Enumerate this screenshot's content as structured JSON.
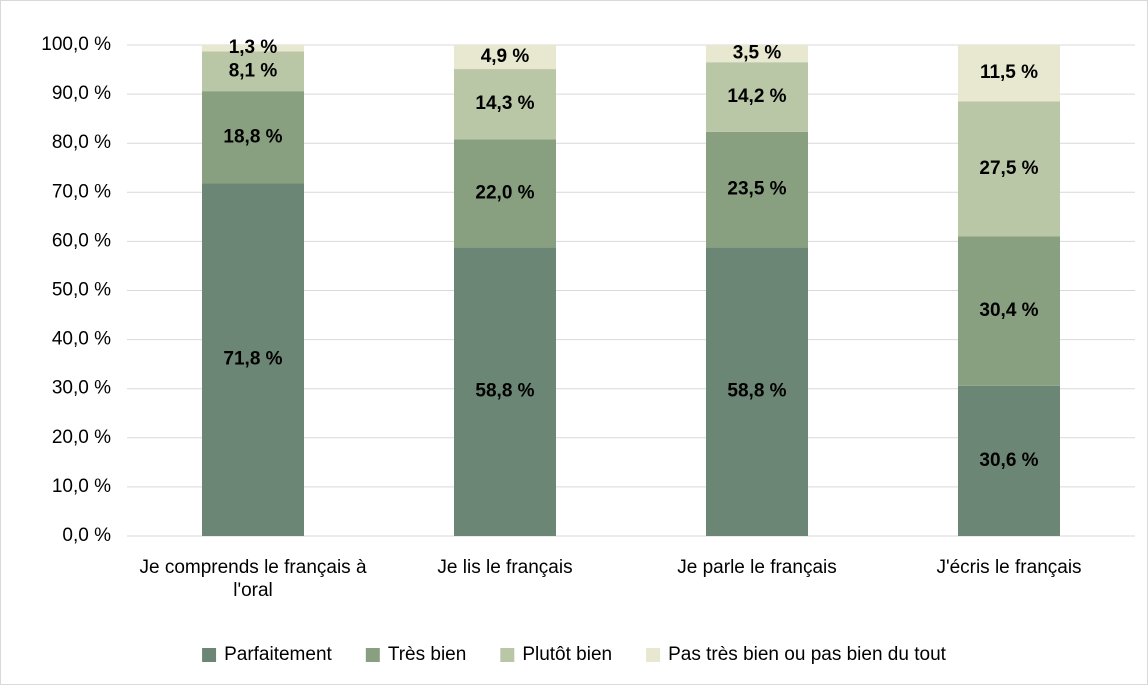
{
  "chart_data": {
    "type": "bar",
    "stacked": true,
    "categories": [
      "Je comprends le français à l'oral",
      "Je lis le français",
      "Je parle le français",
      "J'écris le français"
    ],
    "series": [
      {
        "name": "Parfaitement",
        "color": "#6b8675",
        "values": [
          71.8,
          58.8,
          58.8,
          30.6
        ],
        "value_labels": [
          "71,8 %",
          "58,8 %",
          "58,8 %",
          "30,6 %"
        ]
      },
      {
        "name": "Très bien",
        "color": "#88a080",
        "values": [
          18.8,
          22.0,
          23.5,
          30.4
        ],
        "value_labels": [
          "18,8 %",
          "22,0 %",
          "23,5 %",
          "30,4 %"
        ]
      },
      {
        "name": "Plutôt bien",
        "color": "#b9c7a6",
        "values": [
          8.1,
          14.3,
          14.2,
          27.5
        ],
        "value_labels": [
          "8,1 %",
          "14,3 %",
          "14,2 %",
          "27,5 %"
        ]
      },
      {
        "name": "Pas très bien ou pas bien du tout",
        "color": "#e8e8d0",
        "values": [
          1.3,
          4.9,
          3.5,
          11.5
        ],
        "value_labels": [
          "1,3 %",
          "4,9 %",
          "3,5 %",
          "11,5 %"
        ]
      }
    ],
    "ylim": [
      0,
      100
    ],
    "yticks": [
      {
        "value": 0,
        "label": "0,0 %"
      },
      {
        "value": 10,
        "label": "10,0 %"
      },
      {
        "value": 20,
        "label": "20,0 %"
      },
      {
        "value": 30,
        "label": "30,0 %"
      },
      {
        "value": 40,
        "label": "40,0 %"
      },
      {
        "value": 50,
        "label": "50,0 %"
      },
      {
        "value": 60,
        "label": "60,0 %"
      },
      {
        "value": 70,
        "label": "70,0 %"
      },
      {
        "value": 80,
        "label": "80,0 %"
      },
      {
        "value": 90,
        "label": "90,0 %"
      },
      {
        "value": 100,
        "label": "100,0 %"
      }
    ],
    "grid": true,
    "legend": "bottom"
  }
}
